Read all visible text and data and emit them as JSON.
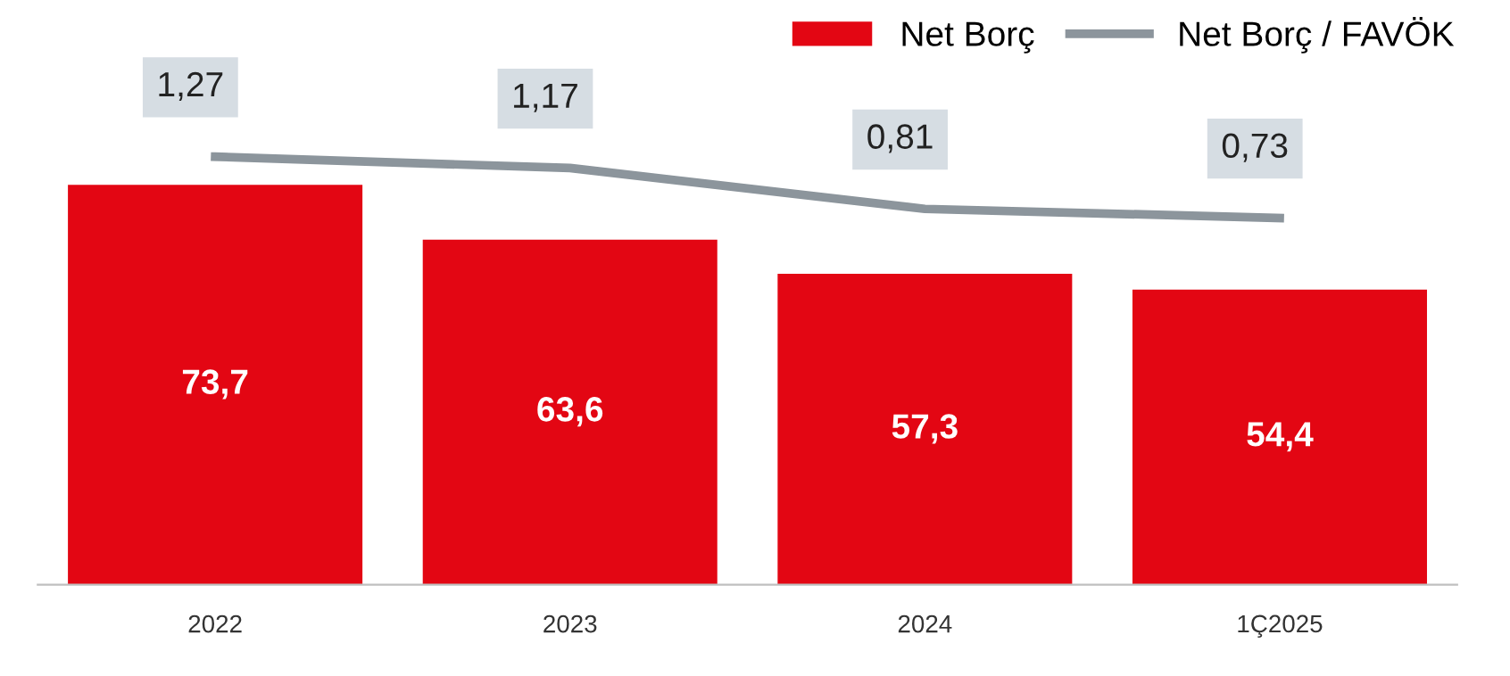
{
  "chart_data": {
    "type": "bar",
    "categories": [
      "2022",
      "2023",
      "2024",
      "1Ç2025"
    ],
    "series": [
      {
        "name": "Net Borç",
        "color": "#e30613",
        "values": [
          73.7,
          63.6,
          57.3,
          54.4
        ],
        "value_labels": [
          "73,7",
          "63,6",
          "57,3",
          "54,4"
        ]
      },
      {
        "name": "Net Borç / FAVÖK",
        "type": "line",
        "axis": "y2",
        "color": "#8c959c",
        "values": [
          1.27,
          1.17,
          0.81,
          0.73
        ],
        "value_labels": [
          "1,27",
          "1,17",
          "0,81",
          "0,73"
        ]
      }
    ],
    "tick_labels": "x",
    "grid": false,
    "legend": "top right",
    "marker": "none",
    "line_style": "solid"
  }
}
